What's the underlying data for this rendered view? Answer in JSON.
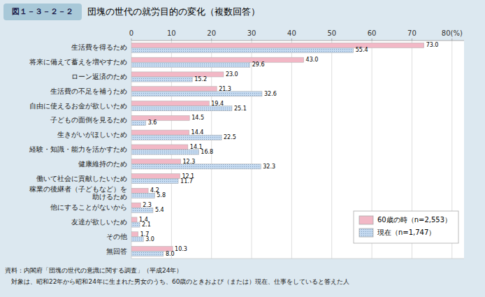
{
  "chart_data": {
    "type": "bar",
    "orientation": "horizontal",
    "title": "団塊の世代の就労目的の変化（複数回答）",
    "subtitle": "図１－３－２－２",
    "annotations": [
      "資料：内閣府「団塊の世代の意識に関する調査」（平成24年）",
      "　対象は、昭和22年から昭和24年に生まれた男女のうち、60歳のときおよび（または）現在、仕事をしていると答えた人"
    ],
    "categories": [
      "生活費を得るため",
      "将来に備えて蓄えを増やすため",
      "ローン返済のため",
      "生活費の不足を補うため",
      "自由に使えるお金が欲しいため",
      "子どもの面倒を見るため",
      "生きがいがほしいため",
      "経験・知識・能力を活かすため",
      "健康維持のため",
      "働いて社会に貢献したいため",
      "稼業の後継者（子どもなど）を\n助けるため",
      "他にすることがないから",
      "友達が欲しいため",
      "その他",
      "無回答"
    ],
    "series": [
      {
        "name": "60歳の時（n=2,553）",
        "color": "#f2b8c6",
        "values": [
          73.0,
          43.0,
          23.0,
          21.3,
          19.4,
          14.5,
          14.4,
          14.1,
          12.3,
          12.1,
          4.2,
          2.3,
          1.4,
          1.7,
          10.3
        ],
        "value_labels": [
          "73.0",
          "43.0",
          "23.0",
          "21.3",
          "19.4",
          "14.5",
          "14.4",
          "14.1",
          "12.3",
          "12.1",
          "4.2",
          "2.3",
          "1.4",
          "1.7",
          "10.3"
        ]
      },
      {
        "name": "現在（n=1,747）",
        "color": "#c5daf0",
        "values": [
          55.4,
          29.6,
          15.2,
          32.6,
          25.1,
          3.6,
          22.5,
          16.8,
          32.3,
          11.7,
          5.8,
          5.4,
          2.1,
          3.0,
          8.0
        ],
        "value_labels": [
          "55.4",
          "29.6",
          "15.2",
          "32.6",
          "25.1",
          "3.6",
          "22.5",
          "16.8",
          "32.3",
          "11.7",
          "5.8",
          "5.4",
          "2.1",
          "3.0",
          "8.0"
        ]
      }
    ],
    "xlim": [
      0,
      83
    ],
    "xticks": [
      0,
      10,
      20,
      30,
      40,
      50,
      60,
      70,
      {
        "value": 80,
        "label": "80(%)"
      }
    ],
    "grid": true,
    "legend": "lower right",
    "data_labels": true
  }
}
